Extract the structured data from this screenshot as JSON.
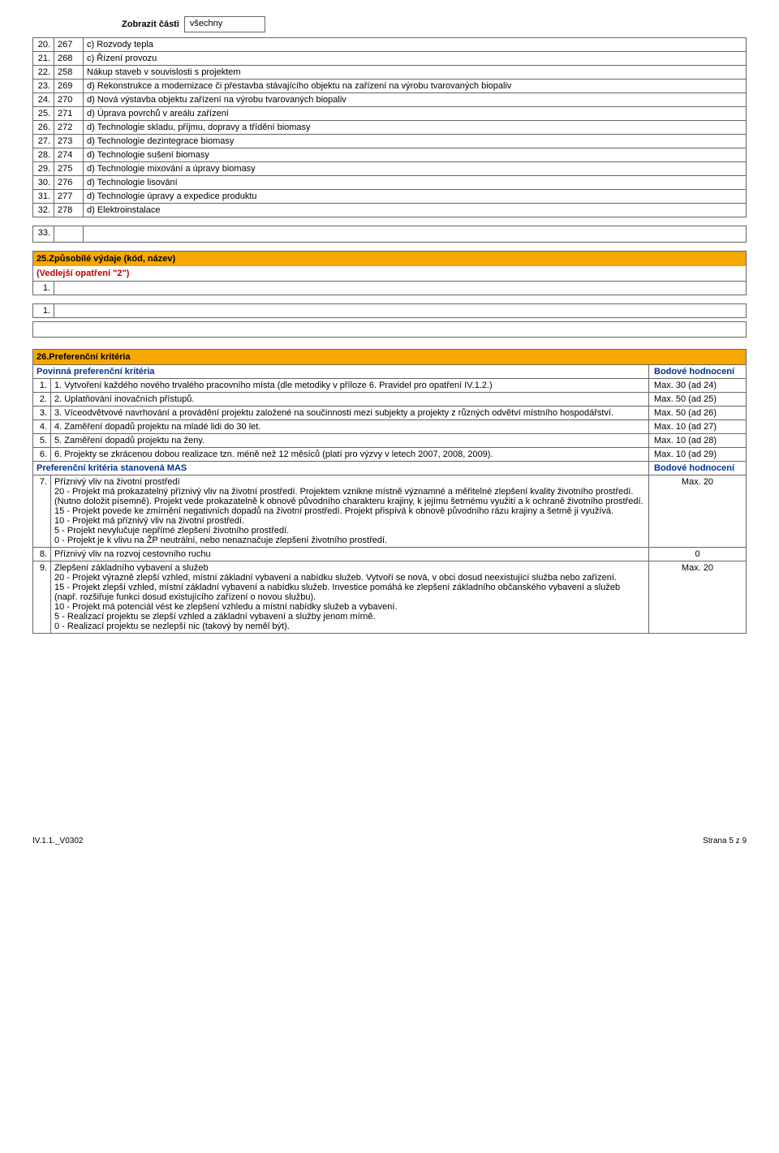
{
  "zobrazit": {
    "label": "Zobrazit části",
    "value": "všechny"
  },
  "codes": [
    {
      "idx": "20.",
      "code": "267",
      "text": "c) Rozvody tepla"
    },
    {
      "idx": "21.",
      "code": "268",
      "text": "c) Řízení provozu"
    },
    {
      "idx": "22.",
      "code": "258",
      "text": "Nákup staveb v souvislosti s projektem"
    },
    {
      "idx": "23.",
      "code": "269",
      "text": "d) Rekonstrukce a modernizace či přestavba stávajícího objektu na zařízení na výrobu tvarovaných biopaliv"
    },
    {
      "idx": "24.",
      "code": "270",
      "text": "d) Nová výstavba objektu zařízení na výrobu tvarovaných biopaliv"
    },
    {
      "idx": "25.",
      "code": "271",
      "text": "d) Úprava povrchů v areálu zařízení"
    },
    {
      "idx": "26.",
      "code": "272",
      "text": "d) Technologie skladu, příjmu, dopravy a třídění biomasy"
    },
    {
      "idx": "27.",
      "code": "273",
      "text": "d) Technologie dezintegrace biomasy"
    },
    {
      "idx": "28.",
      "code": "274",
      "text": "d) Technologie sušení biomasy"
    },
    {
      "idx": "29.",
      "code": "275",
      "text": "d) Technologie mixování a úpravy biomasy"
    },
    {
      "idx": "30.",
      "code": "276",
      "text": "d) Technologie lisování"
    },
    {
      "idx": "31.",
      "code": "277",
      "text": "d) Technologie úpravy a expedice produktu"
    },
    {
      "idx": "32.",
      "code": "278",
      "text": "d) Elektroinstalace"
    }
  ],
  "row33_idx": "33.",
  "section25": {
    "title": "25.Způsobilé výdaje (kód, název)",
    "sub": "(Vedlejší opatření \"2\")",
    "row1": "1.",
    "row1b": "1."
  },
  "section26": {
    "title": "26.Preferenční kritéria",
    "povinna_label": "Povinná preferenční kritéria",
    "bodove_label": "Bodové hodnocení",
    "mas_label": "Preferenční kritéria stanovená MAS",
    "povinna": [
      {
        "idx": "1.",
        "text": "1. Vytvoření každého nového trvalého pracovního místa (dle metodiky v příloze 6. Pravidel pro opatření IV.1.2.)",
        "score": "Max. 30 (ad 24)"
      },
      {
        "idx": "2.",
        "text": "2. Uplatňování inovačních přístupů.",
        "score": "Max. 50 (ad 25)"
      },
      {
        "idx": "3.",
        "text": "3. Víceodvětvové navrhování a provádění projektu založené na součinnosti mezi subjekty a projekty z různých odvětví místního hospodářství.",
        "score": "Max. 50 (ad 26)"
      },
      {
        "idx": "4.",
        "text": "4. Zaměření dopadů projektu na mladé lidi do 30 let.",
        "score": "Max. 10 (ad 27)"
      },
      {
        "idx": "5.",
        "text": "5. Zaměření dopadů projektu na ženy.",
        "score": "Max. 10 (ad 28)"
      },
      {
        "idx": "6.",
        "text": "6. Projekty se zkrácenou dobou realizace tzn. méně než 12 měsíců (platí pro výzvy v letech 2007, 2008, 2009).",
        "score": "Max. 10 (ad 29)"
      }
    ],
    "mas": [
      {
        "idx": "7.",
        "text": "Příznivý vliv na životní prostředí\n20 - Projekt má prokazatelný příznivý vliv na životní prostředí. Projektem vznikne místně významné a měřitelné zlepšení kvality životního prostředí.  (Nutno doložit písemně). Projekt vede prokazatelně k obnově původního charakteru krajiny, k jejímu šetrnému využití a k ochraně životního prostředí.\n15 - Projekt povede ke zmírnění negativních dopadů na životní prostředí. Projekt přispívá k obnově původního rázu krajiny a šetrně ji využívá.\n10 - Projekt má příznivý vliv na životní prostředí.\n5 - Projekt nevylučuje nepřímé zlepšení životního prostředí.\n0 - Projekt je k vlivu na ŽP neutrální, nebo nenaznačuje zlepšení životního prostředí.",
        "score": "Max. 20"
      },
      {
        "idx": "8.",
        "text": "Příznivý vliv na rozvoj cestovního ruchu",
        "score": "0"
      },
      {
        "idx": "9.",
        "text": "Zlepšení základního vybavení a služeb\n20 - Projekt výrazně zlepší vzhled, místní základní vybavení a nabídku služeb. Vytvoří se nová, v obci dosud neexistující služba nebo zařízení.\n15 - Projekt zlepší vzhled, místní základní vybavení a nabídku služeb. Investice pomáhá ke zlepšení základního občanského vybavení a služeb (např. rozšiřuje funkci dosud existujícího zařízení o novou službu).\n10 - Projekt má potenciál vést ke zlepšení vzhledu a místní nabídky služeb a vybavení.\n5 - Realizací projektu se zlepší vzhled a základní vybavení a služby jenom mírně.\n0 - Realizací projektu se nezlepší nic (takový by neměl být).",
        "score": "Max. 20"
      }
    ]
  },
  "footer": {
    "left": "IV.1.1._V0302",
    "right": "Strana 5 z 9"
  }
}
